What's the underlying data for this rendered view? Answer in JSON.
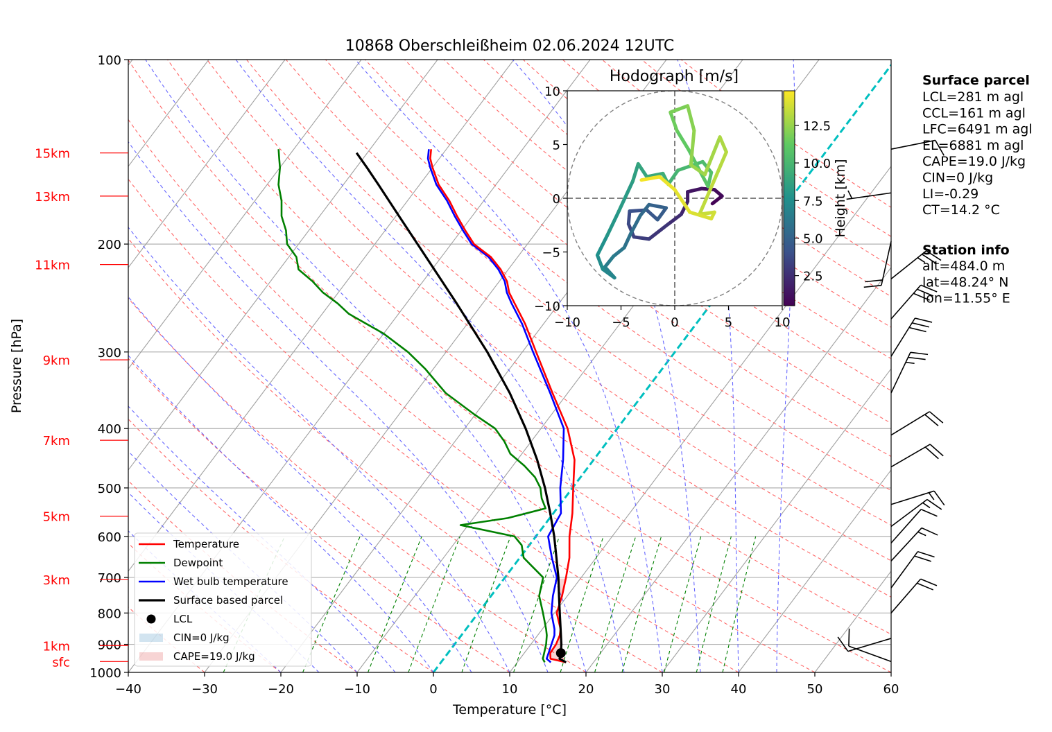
{
  "chart_data": [
    {
      "type": "skew-t",
      "title": "10868 Oberschleißheim 02.06.2024 12UTC",
      "xlabel": "Temperature [°C]",
      "ylabel": "Pressure [hPa]",
      "xlim": [
        -40,
        60
      ],
      "ylim": [
        1000,
        100
      ],
      "y_scale": "log",
      "grid": true,
      "x_ticks": [
        "−40",
        "−30",
        "−20",
        "−10",
        "0",
        "10",
        "20",
        "30",
        "40",
        "50",
        "60"
      ],
      "y_ticks": [
        {
          "p": 100,
          "label": "100"
        },
        {
          "p": 200,
          "label": "200"
        },
        {
          "p": 300,
          "label": "300"
        },
        {
          "p": 400,
          "label": "400"
        },
        {
          "p": 500,
          "label": "500"
        },
        {
          "p": 600,
          "label": "600"
        },
        {
          "p": 700,
          "label": "700"
        },
        {
          "p": 800,
          "label": "800"
        },
        {
          "p": 900,
          "label": "900"
        },
        {
          "p": 1000,
          "label": "1000"
        }
      ],
      "height_markers": [
        {
          "label": "15km",
          "p": 142
        },
        {
          "label": "13km",
          "p": 167
        },
        {
          "label": "11km",
          "p": 216
        },
        {
          "label": "9km",
          "p": 309
        },
        {
          "label": "7km",
          "p": 418
        },
        {
          "label": "5km",
          "p": 556
        },
        {
          "label": "3km",
          "p": 705
        },
        {
          "label": "1km",
          "p": 904
        },
        {
          "label": "sfc",
          "p": 960
        }
      ],
      "colors": {
        "temperature": "#ff0000",
        "dewpoint": "#008000",
        "wetbulb": "#0000ff",
        "parcel": "#000000",
        "isotherm_zero": "#00bfbf",
        "cin_fill": "#1f77b4",
        "cape_fill": "#d62728",
        "height_markers": "#ff0000",
        "dry_adiabat": "#ff6666",
        "moist_adiabat": "#6666ff",
        "mixing_ratio": "#008000"
      },
      "legend_position": "lower-left",
      "legend": [
        {
          "key": "temperature",
          "label": "Temperature"
        },
        {
          "key": "dewpoint",
          "label": "Dewpoint"
        },
        {
          "key": "wetbulb",
          "label": "Wet bulb temperature"
        },
        {
          "key": "parcel",
          "label": "Surface based parcel"
        },
        {
          "key": "lcl",
          "label": "LCL"
        },
        {
          "key": "cin",
          "label": "CIN=0 J/kg"
        },
        {
          "key": "cape",
          "label": "CAPE=19.0 J/kg"
        }
      ],
      "series": [
        {
          "name": "Temperature",
          "points": [
            [
              963,
              16.4
            ],
            [
              950,
              14.0
            ],
            [
              930,
              13.4
            ],
            [
              900,
              13.3
            ],
            [
              870,
              12.9
            ],
            [
              850,
              12.4
            ],
            [
              800,
              10.3
            ],
            [
              750,
              9.3
            ],
            [
              700,
              8.0
            ],
            [
              650,
              6.5
            ],
            [
              600,
              4.4
            ],
            [
              550,
              2.5
            ],
            [
              500,
              0.1
            ],
            [
              450,
              -2.5
            ],
            [
              400,
              -6.5
            ],
            [
              350,
              -12.0
            ],
            [
              300,
              -18.2
            ],
            [
              270,
              -22.4
            ],
            [
              250,
              -25.8
            ],
            [
              240,
              -27.6
            ],
            [
              230,
              -29.0
            ],
            [
              220,
              -31.0
            ],
            [
              210,
              -33.5
            ],
            [
              200,
              -37.0
            ],
            [
              190,
              -39.5
            ],
            [
              180,
              -42.0
            ],
            [
              170,
              -44.5
            ],
            [
              160,
              -47.5
            ],
            [
              150,
              -50.0
            ],
            [
              145,
              -51.2
            ],
            [
              140,
              -52.0
            ]
          ]
        },
        {
          "name": "Dewpoint",
          "points": [
            [
              963,
              13.6
            ],
            [
              950,
              13.0
            ],
            [
              900,
              12.0
            ],
            [
              870,
              11.2
            ],
            [
              850,
              10.5
            ],
            [
              800,
              8.5
            ],
            [
              750,
              6.3
            ],
            [
              700,
              5.0
            ],
            [
              650,
              0.5
            ],
            [
              620,
              -1.0
            ],
            [
              600,
              -2.8
            ],
            [
              575,
              -11.0
            ],
            [
              560,
              -5.5
            ],
            [
              540,
              -1.5
            ],
            [
              520,
              -3.0
            ],
            [
              500,
              -4.2
            ],
            [
              480,
              -6.0
            ],
            [
              460,
              -8.5
            ],
            [
              440,
              -11.5
            ],
            [
              420,
              -13.5
            ],
            [
              400,
              -16.0
            ],
            [
              380,
              -20.0
            ],
            [
              350,
              -26.0
            ],
            [
              320,
              -31.0
            ],
            [
              300,
              -35.0
            ],
            [
              280,
              -40.0
            ],
            [
              260,
              -46.5
            ],
            [
              250,
              -49.0
            ],
            [
              240,
              -52.0
            ],
            [
              230,
              -54.5
            ],
            [
              220,
              -57.5
            ],
            [
              210,
              -59.0
            ],
            [
              200,
              -61.5
            ],
            [
              190,
              -63.0
            ],
            [
              180,
              -65.0
            ],
            [
              170,
              -66.5
            ],
            [
              160,
              -68.5
            ],
            [
              150,
              -70.0
            ],
            [
              145,
              -71.0
            ],
            [
              140,
              -72.0
            ]
          ]
        },
        {
          "name": "Wet bulb temperature",
          "points": [
            [
              963,
              14.4
            ],
            [
              950,
              13.5
            ],
            [
              900,
              12.7
            ],
            [
              870,
              12.2
            ],
            [
              850,
              11.6
            ],
            [
              800,
              9.6
            ],
            [
              750,
              8.1
            ],
            [
              700,
              6.8
            ],
            [
              650,
              4.2
            ],
            [
              600,
              1.6
            ],
            [
              550,
              1.0
            ],
            [
              500,
              -1.6
            ],
            [
              450,
              -4.0
            ],
            [
              400,
              -7.0
            ],
            [
              350,
              -12.3
            ],
            [
              300,
              -18.6
            ],
            [
              270,
              -22.8
            ],
            [
              250,
              -26.2
            ],
            [
              240,
              -27.9
            ],
            [
              230,
              -29.3
            ],
            [
              220,
              -31.3
            ],
            [
              210,
              -33.8
            ],
            [
              200,
              -37.3
            ],
            [
              190,
              -39.8
            ],
            [
              180,
              -42.3
            ],
            [
              170,
              -44.8
            ],
            [
              160,
              -47.8
            ],
            [
              150,
              -50.3
            ],
            [
              145,
              -51.5
            ],
            [
              140,
              -52.3
            ]
          ]
        },
        {
          "name": "Surface based parcel",
          "points": [
            [
              963,
              16.4
            ],
            [
              950,
              15.2
            ],
            [
              930,
              14.8
            ],
            [
              900,
              14.0
            ],
            [
              850,
              12.4
            ],
            [
              800,
              10.7
            ],
            [
              750,
              8.9
            ],
            [
              700,
              7.0
            ],
            [
              650,
              4.8
            ],
            [
              600,
              2.4
            ],
            [
              550,
              -0.4
            ],
            [
              500,
              -3.6
            ],
            [
              450,
              -7.4
            ],
            [
              400,
              -12.0
            ],
            [
              350,
              -17.6
            ],
            [
              300,
              -24.6
            ],
            [
              250,
              -33.4
            ],
            [
              200,
              -44.4
            ],
            [
              180,
              -49.6
            ],
            [
              160,
              -55.4
            ],
            [
              150,
              -58.6
            ],
            [
              142,
              -61.4
            ]
          ]
        }
      ],
      "lcl": {
        "p": 930,
        "t": 14.8
      }
    },
    {
      "type": "scatter",
      "title": "Hodograph [m/s]",
      "xlim": [
        -10,
        10
      ],
      "ylim": [
        -10,
        10
      ],
      "x_ticks": [
        "−10",
        "−5",
        "0",
        "5",
        "10"
      ],
      "y_ticks": [
        "−10",
        "−5",
        "0",
        "5",
        "10"
      ],
      "colorbar_label": "Height [km]",
      "colorbar_ticks": [
        "2.5",
        "5.0",
        "7.5",
        "10.0",
        "12.5"
      ],
      "colorbar_range": [
        0.5,
        14.8
      ],
      "points": [
        [
          3.5,
          -0.5,
          0.5
        ],
        [
          4.4,
          0.2,
          0.8
        ],
        [
          3.7,
          0.8,
          1.0
        ],
        [
          2.5,
          0.9,
          1.2
        ],
        [
          1.2,
          0.6,
          1.5
        ],
        [
          1.2,
          -0.3,
          1.8
        ],
        [
          0.6,
          -1.5,
          2.2
        ],
        [
          -0.6,
          -2.4,
          2.6
        ],
        [
          -2.4,
          -3.8,
          3.0
        ],
        [
          -3.8,
          -3.6,
          3.3
        ],
        [
          -4.3,
          -2.4,
          3.6
        ],
        [
          -4.2,
          -1.2,
          3.9
        ],
        [
          -2.6,
          -1.1,
          4.2
        ],
        [
          -1.6,
          -2.0,
          4.5
        ],
        [
          -0.8,
          -0.9,
          4.8
        ],
        [
          -2.4,
          -0.6,
          5.1
        ],
        [
          -3.2,
          -1.6,
          5.4
        ],
        [
          -4.1,
          -3.3,
          5.7
        ],
        [
          -4.7,
          -4.6,
          6.0
        ],
        [
          -5.7,
          -5.4,
          6.3
        ],
        [
          -6.5,
          -6.4,
          6.6
        ],
        [
          -5.6,
          -7.4,
          6.9
        ],
        [
          -6.7,
          -6.6,
          7.2
        ],
        [
          -7.2,
          -5.3,
          7.5
        ],
        [
          -6.3,
          -3.5,
          7.8
        ],
        [
          -5.2,
          -1.2,
          8.1
        ],
        [
          -3.9,
          1.6,
          8.4
        ],
        [
          -3.4,
          3.2,
          8.7
        ],
        [
          -2.6,
          2.0,
          9.0
        ],
        [
          -1.1,
          2.3,
          9.3
        ],
        [
          -0.6,
          1.3,
          9.6
        ],
        [
          0.3,
          2.6,
          9.9
        ],
        [
          2.6,
          3.4,
          10.2
        ],
        [
          3.4,
          2.4,
          10.5
        ],
        [
          3.1,
          1.1,
          10.8
        ],
        [
          1.3,
          4.5,
          11.1
        ],
        [
          0.2,
          6.3,
          11.4
        ],
        [
          -0.4,
          8.0,
          11.7
        ],
        [
          1.2,
          8.6,
          12.0
        ],
        [
          1.8,
          6.3,
          12.3
        ],
        [
          1.5,
          3.1,
          12.5
        ],
        [
          2.8,
          2.2,
          12.7
        ],
        [
          4.2,
          5.7,
          12.9
        ],
        [
          4.8,
          4.3,
          13.1
        ],
        [
          3.6,
          1.5,
          13.3
        ],
        [
          2.3,
          -1.5,
          13.5
        ],
        [
          3.7,
          -1.3,
          13.7
        ],
        [
          3.4,
          -1.9,
          13.9
        ],
        [
          1.4,
          -1.3,
          14.1
        ],
        [
          0.0,
          0.8,
          14.3
        ],
        [
          -1.4,
          2.0,
          14.5
        ],
        [
          -3.1,
          1.7,
          14.7
        ]
      ]
    }
  ],
  "wind_barbs": [
    {
      "p": 140,
      "u": -5.0,
      "v": -1.0
    },
    {
      "p": 165,
      "u": 3.5,
      "v": 0.5
    },
    {
      "p": 198,
      "u": 2.0,
      "v": 9.0
    },
    {
      "p": 228,
      "u": -10.0,
      "v": -8.0
    },
    {
      "p": 265,
      "u": -10.5,
      "v": -12.0
    },
    {
      "p": 305,
      "u": -7.5,
      "v": -12.0
    },
    {
      "p": 350,
      "u": -5.0,
      "v": -10.5
    },
    {
      "p": 410,
      "u": -9.0,
      "v": -5.5
    },
    {
      "p": 462,
      "u": -9.5,
      "v": -5.5
    },
    {
      "p": 532,
      "u": -8.0,
      "v": -2.5
    },
    {
      "p": 578,
      "u": -6.0,
      "v": -4.5
    },
    {
      "p": 615,
      "u": -4.0,
      "v": -4.5
    },
    {
      "p": 658,
      "u": -6.0,
      "v": -6.5
    },
    {
      "p": 728,
      "u": -5.5,
      "v": -7.5
    },
    {
      "p": 800,
      "u": -6.5,
      "v": -7.5
    },
    {
      "p": 880,
      "u": 5.0,
      "v": 1.5
    },
    {
      "p": 960,
      "u": 5.5,
      "v": -2.0
    }
  ],
  "info_panel": {
    "surface_title": "Surface parcel",
    "surface_lines": [
      "LCL=281 m agl",
      "CCL=161 m agl",
      "LFC=6491 m agl",
      "EL=6881 m agl",
      "CAPE=19.0 J/kg",
      "CIN=0 J/kg",
      "LI=-0.29",
      "CT=14.2 °C"
    ],
    "station_title": "Station info",
    "station_lines": [
      "alt=484.0 m",
      "lat=48.24° N",
      "lon=11.55° E"
    ]
  }
}
